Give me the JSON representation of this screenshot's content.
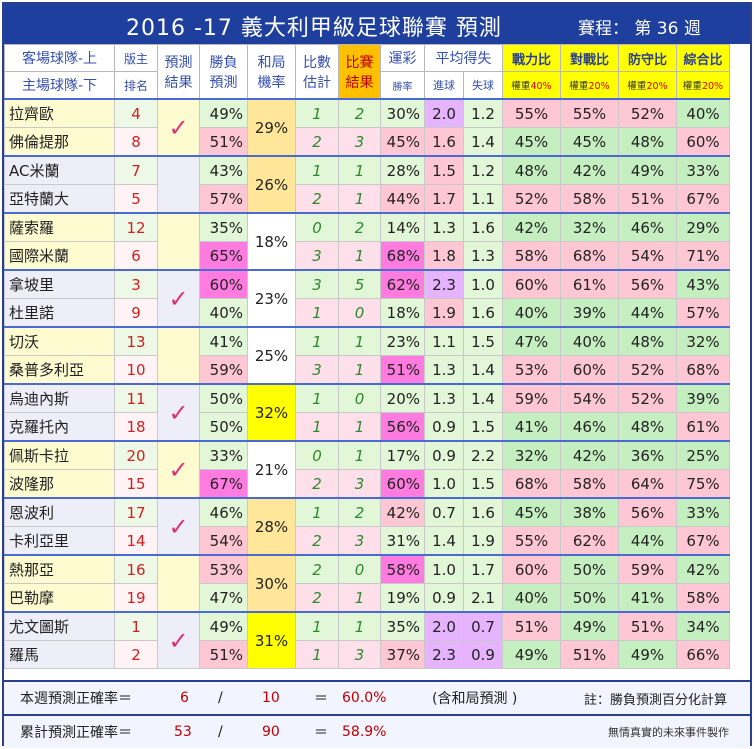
{
  "title": "2016 -17  義大利甲級足球聯賽  預測",
  "schedule": "賽程：  第 36 週",
  "headers": {
    "team_top": "客場球隊-上",
    "team_bottom": "主場球隊-下",
    "rank_top": "版主",
    "rank_bottom": "排名",
    "pred_top": "預測",
    "pred_bottom": "結果",
    "wl_top": "勝負",
    "wl_bottom": "預測",
    "draw_top": "和局",
    "draw_bottom": "機率",
    "score_top": "比數",
    "score_bottom": "估計",
    "result_top": "比賽",
    "result_bottom": "結果",
    "luck": "運彩",
    "luck_sub": "勝率",
    "avg": "平均得失",
    "avg_for": "進球",
    "avg_against": "失球",
    "power": "戰力比",
    "power_w": "權重",
    "power_p": "40%",
    "h2h": "對戰比",
    "h2h_w": "權重",
    "h2h_p": "20%",
    "def": "防守比",
    "def_w": "權重",
    "def_p": "20%",
    "total": "綜合比",
    "total_w": "權重",
    "total_p": "20%"
  },
  "matches": [
    {
      "check": "✓",
      "draw": "29%",
      "teams": [
        {
          "name": "拉齊歐",
          "rank": "4",
          "wl": "49%",
          "score": "1",
          "result": "2",
          "luck": "30%",
          "gf": "2.0",
          "ga": "1.2",
          "power": "55%",
          "h2h": "55%",
          "def": "52%",
          "total": "40%"
        },
        {
          "name": "佛倫提那",
          "rank": "8",
          "wl": "51%",
          "score": "2",
          "result": "3",
          "luck": "45%",
          "gf": "1.6",
          "ga": "1.4",
          "power": "45%",
          "h2h": "45%",
          "def": "48%",
          "total": "60%"
        }
      ]
    },
    {
      "check": "",
      "draw": "26%",
      "teams": [
        {
          "name": "AC米蘭",
          "rank": "7",
          "wl": "43%",
          "score": "1",
          "result": "1",
          "luck": "28%",
          "gf": "1.5",
          "ga": "1.2",
          "power": "48%",
          "h2h": "42%",
          "def": "49%",
          "total": "33%"
        },
        {
          "name": "亞特蘭大",
          "rank": "5",
          "wl": "57%",
          "score": "2",
          "result": "1",
          "luck": "44%",
          "gf": "1.7",
          "ga": "1.1",
          "power": "52%",
          "h2h": "58%",
          "def": "51%",
          "total": "67%"
        }
      ]
    },
    {
      "check": "",
      "draw": "18%",
      "teams": [
        {
          "name": "薩索羅",
          "rank": "12",
          "wl": "35%",
          "score": "0",
          "result": "2",
          "luck": "14%",
          "gf": "1.3",
          "ga": "1.6",
          "power": "42%",
          "h2h": "32%",
          "def": "46%",
          "total": "29%"
        },
        {
          "name": "國際米蘭",
          "rank": "6",
          "wl": "65%",
          "score": "3",
          "result": "1",
          "luck": "68%",
          "gf": "1.8",
          "ga": "1.3",
          "power": "58%",
          "h2h": "68%",
          "def": "54%",
          "total": "71%"
        }
      ]
    },
    {
      "check": "✓",
      "draw": "23%",
      "teams": [
        {
          "name": "拿坡里",
          "rank": "3",
          "wl": "60%",
          "score": "3",
          "result": "5",
          "luck": "62%",
          "gf": "2.3",
          "ga": "1.0",
          "power": "60%",
          "h2h": "61%",
          "def": "56%",
          "total": "43%"
        },
        {
          "name": "杜里諾",
          "rank": "9",
          "wl": "40%",
          "score": "1",
          "result": "0",
          "luck": "18%",
          "gf": "1.9",
          "ga": "1.6",
          "power": "40%",
          "h2h": "39%",
          "def": "44%",
          "total": "57%"
        }
      ]
    },
    {
      "check": "",
      "draw": "25%",
      "teams": [
        {
          "name": "切沃",
          "rank": "13",
          "wl": "41%",
          "score": "1",
          "result": "1",
          "luck": "23%",
          "gf": "1.1",
          "ga": "1.5",
          "power": "47%",
          "h2h": "40%",
          "def": "48%",
          "total": "32%"
        },
        {
          "name": "桑普多利亞",
          "rank": "10",
          "wl": "59%",
          "score": "3",
          "result": "1",
          "luck": "51%",
          "gf": "1.3",
          "ga": "1.4",
          "power": "53%",
          "h2h": "60%",
          "def": "52%",
          "total": "68%"
        }
      ]
    },
    {
      "check": "✓",
      "draw": "32%",
      "teams": [
        {
          "name": "烏迪內斯",
          "rank": "11",
          "wl": "50%",
          "score": "1",
          "result": "0",
          "luck": "20%",
          "gf": "1.3",
          "ga": "1.4",
          "power": "59%",
          "h2h": "54%",
          "def": "52%",
          "total": "39%"
        },
        {
          "name": "克羅托內",
          "rank": "18",
          "wl": "50%",
          "score": "1",
          "result": "1",
          "luck": "56%",
          "gf": "0.9",
          "ga": "1.5",
          "power": "41%",
          "h2h": "46%",
          "def": "48%",
          "total": "61%"
        }
      ]
    },
    {
      "check": "✓",
      "draw": "21%",
      "teams": [
        {
          "name": "佩斯卡拉",
          "rank": "20",
          "wl": "33%",
          "score": "0",
          "result": "1",
          "luck": "17%",
          "gf": "0.9",
          "ga": "2.2",
          "power": "32%",
          "h2h": "42%",
          "def": "36%",
          "total": "25%"
        },
        {
          "name": "波隆那",
          "rank": "15",
          "wl": "67%",
          "score": "2",
          "result": "3",
          "luck": "60%",
          "gf": "1.0",
          "ga": "1.5",
          "power": "68%",
          "h2h": "58%",
          "def": "64%",
          "total": "75%"
        }
      ]
    },
    {
      "check": "✓",
      "draw": "28%",
      "teams": [
        {
          "name": "恩波利",
          "rank": "17",
          "wl": "46%",
          "score": "1",
          "result": "2",
          "luck": "42%",
          "gf": "0.7",
          "ga": "1.6",
          "power": "45%",
          "h2h": "38%",
          "def": "56%",
          "total": "33%"
        },
        {
          "name": "卡利亞里",
          "rank": "14",
          "wl": "54%",
          "score": "2",
          "result": "3",
          "luck": "31%",
          "gf": "1.4",
          "ga": "1.9",
          "power": "55%",
          "h2h": "62%",
          "def": "44%",
          "total": "67%"
        }
      ]
    },
    {
      "check": "",
      "draw": "30%",
      "teams": [
        {
          "name": "熱那亞",
          "rank": "16",
          "wl": "53%",
          "score": "2",
          "result": "0",
          "luck": "58%",
          "gf": "1.0",
          "ga": "1.7",
          "power": "60%",
          "h2h": "50%",
          "def": "59%",
          "total": "42%"
        },
        {
          "name": "巴勒摩",
          "rank": "19",
          "wl": "47%",
          "score": "2",
          "result": "1",
          "luck": "19%",
          "gf": "0.9",
          "ga": "2.1",
          "power": "40%",
          "h2h": "50%",
          "def": "41%",
          "total": "58%"
        }
      ]
    },
    {
      "check": "✓",
      "draw": "31%",
      "teams": [
        {
          "name": "尤文圖斯",
          "rank": "1",
          "wl": "49%",
          "score": "1",
          "result": "1",
          "luck": "35%",
          "gf": "2.0",
          "ga": "0.7",
          "power": "51%",
          "h2h": "49%",
          "def": "51%",
          "total": "34%"
        },
        {
          "name": "羅馬",
          "rank": "2",
          "wl": "51%",
          "score": "1",
          "result": "3",
          "luck": "37%",
          "gf": "2.3",
          "ga": "0.9",
          "power": "49%",
          "h2h": "51%",
          "def": "49%",
          "total": "66%"
        }
      ]
    }
  ],
  "footer1": {
    "label": "本週預測正確率＝",
    "correct": "6",
    "slash": "/",
    "total": "10",
    "eq": "＝",
    "pct": "60.0%",
    "note1": "(含和局預測 )",
    "note2": "註：勝負預測百分化計算"
  },
  "footer2": {
    "label": "累計預測正確率＝",
    "correct": "53",
    "slash": "/",
    "total": "90",
    "eq": "＝",
    "pct": "58.9%",
    "author": "無情真實的未來事件製作"
  }
}
